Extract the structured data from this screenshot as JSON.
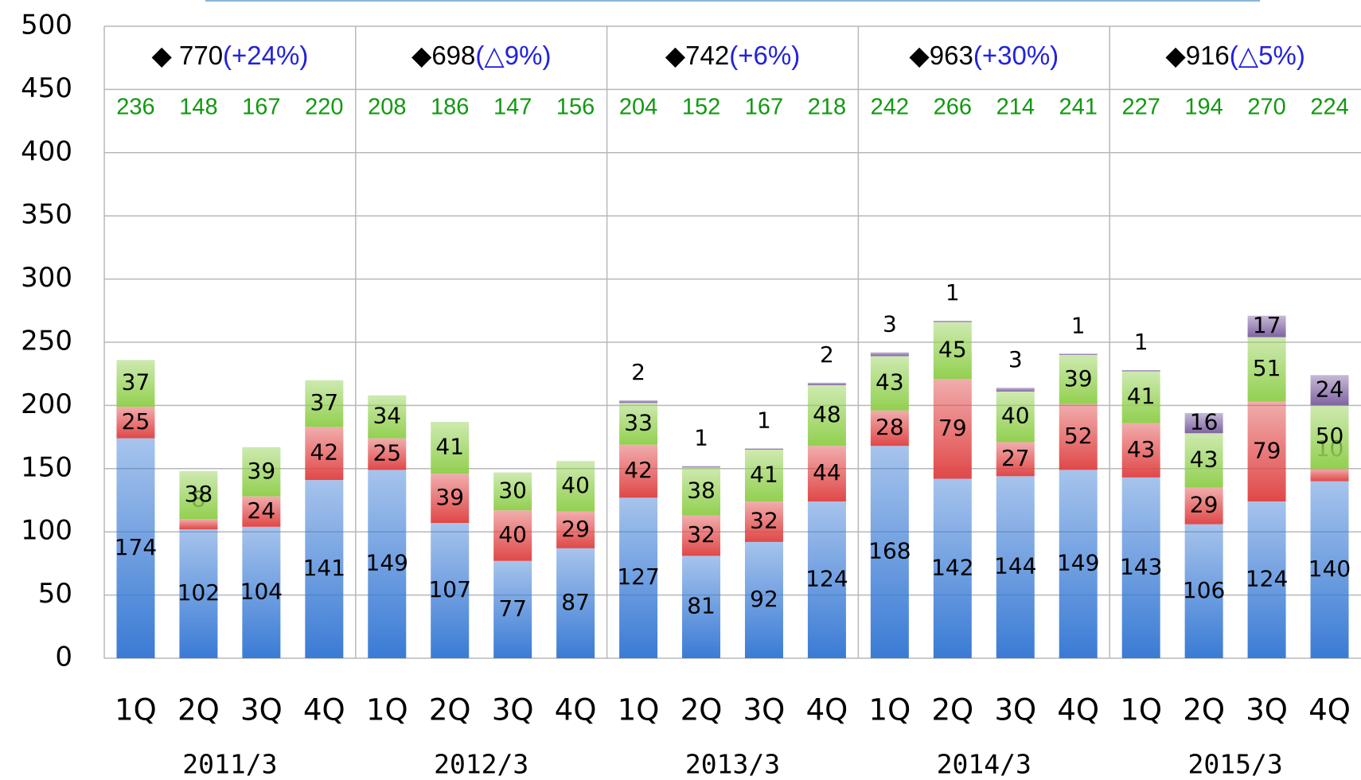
{
  "chart_data": {
    "type": "stacked_bar",
    "categories": [
      "1Q",
      "2Q",
      "3Q",
      "4Q",
      "1Q",
      "2Q",
      "3Q",
      "4Q",
      "1Q",
      "2Q",
      "3Q",
      "4Q",
      "1Q",
      "2Q",
      "3Q",
      "4Q",
      "1Q",
      "2Q",
      "3Q",
      "4Q"
    ],
    "groups": [
      {
        "label": "2011/3",
        "total": "◆ 770",
        "change": "(+24%)"
      },
      {
        "label": "2012/3",
        "total": "◆698",
        "change": "(△9%)"
      },
      {
        "label": "2013/3",
        "total": "◆742",
        "change": "(+6%)"
      },
      {
        "label": "2014/3",
        "total": "◆963",
        "change": "(+30%)"
      },
      {
        "label": "2015/3",
        "total": "◆916",
        "change": "(△5%)"
      }
    ],
    "totals": [
      236,
      148,
      167,
      220,
      208,
      186,
      147,
      156,
      204,
      152,
      167,
      218,
      242,
      266,
      214,
      241,
      227,
      194,
      270,
      224
    ],
    "series": [
      {
        "color": "#3a7bd5",
        "values": [
          174,
          102,
          104,
          141,
          149,
          107,
          77,
          87,
          127,
          81,
          92,
          124,
          168,
          142,
          144,
          149,
          143,
          106,
          124,
          140
        ]
      },
      {
        "color": "#e04848",
        "values": [
          25,
          8,
          24,
          42,
          25,
          39,
          40,
          29,
          42,
          32,
          32,
          44,
          28,
          79,
          27,
          52,
          43,
          29,
          79,
          10
        ]
      },
      {
        "color": "#92d050",
        "values": [
          37,
          38,
          39,
          37,
          34,
          41,
          30,
          40,
          33,
          38,
          41,
          48,
          43,
          45,
          40,
          39,
          41,
          43,
          51,
          50
        ]
      },
      {
        "color": "#8064a2",
        "values": [
          null,
          null,
          null,
          null,
          null,
          null,
          null,
          null,
          2,
          1,
          1,
          2,
          3,
          1,
          3,
          1,
          1,
          16,
          17,
          24
        ]
      }
    ],
    "ylim": [
      0,
      500
    ],
    "yticks": [
      0,
      50,
      100,
      150,
      200,
      250,
      300,
      350,
      400,
      450,
      500
    ],
    "grid": true
  }
}
